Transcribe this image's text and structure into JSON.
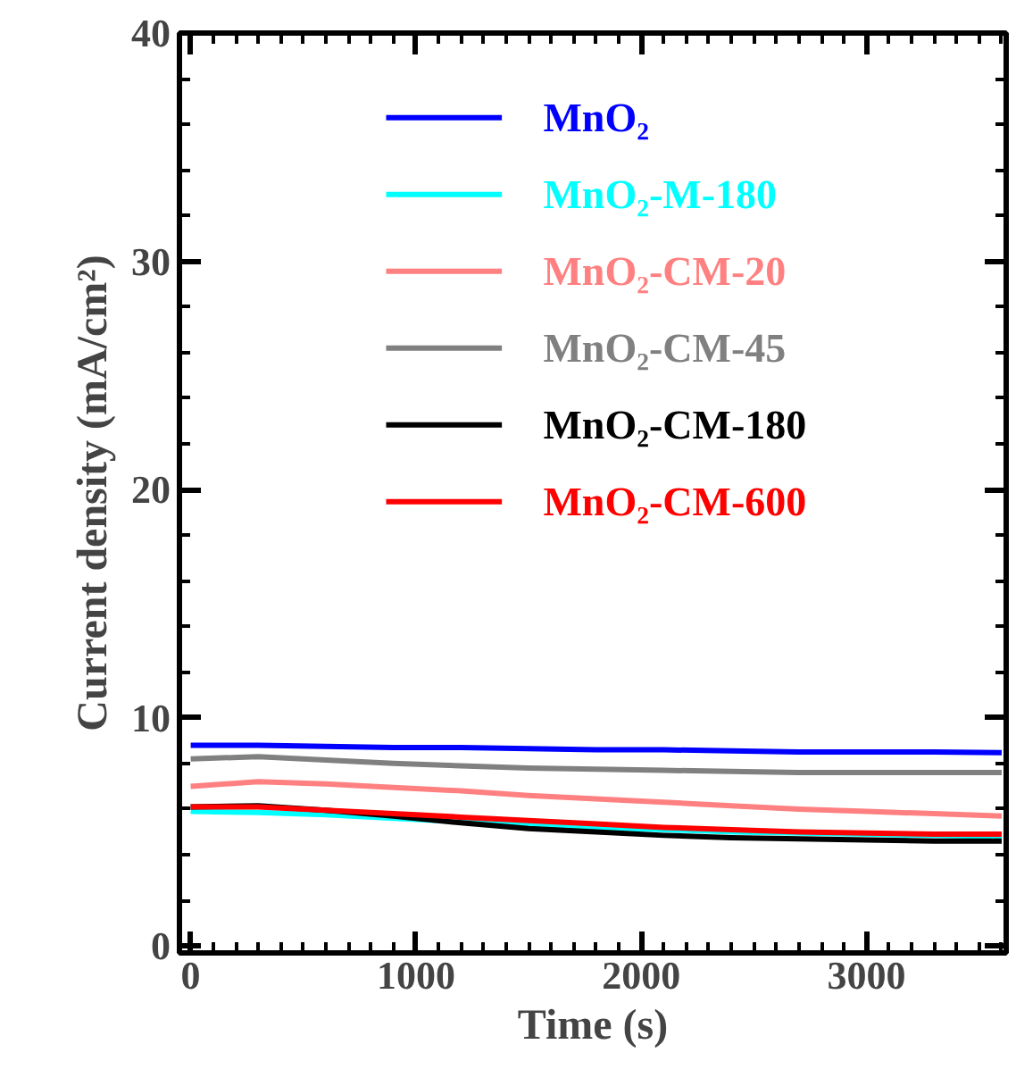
{
  "chart_data": {
    "type": "line",
    "xlabel": "Time (s)",
    "ylabel": "Current density (mA/cm²)",
    "x": [
      0,
      300,
      600,
      900,
      1200,
      1500,
      1800,
      2100,
      2400,
      2700,
      3000,
      3300,
      3600
    ],
    "series": [
      {
        "name": "MnO₂",
        "color": "#0000ff",
        "values": [
          8.8,
          8.8,
          8.75,
          8.7,
          8.7,
          8.65,
          8.6,
          8.6,
          8.55,
          8.5,
          8.5,
          8.5,
          8.47
        ]
      },
      {
        "name": "MnO₂-M-180",
        "color": "#00ffff",
        "values": [
          5.9,
          5.85,
          5.75,
          5.6,
          5.45,
          5.3,
          5.2,
          5.1,
          5.0,
          4.95,
          4.9,
          4.85,
          4.8
        ]
      },
      {
        "name": "MnO₂-CM-20",
        "color": "#ff8080",
        "values": [
          7.0,
          7.2,
          7.1,
          6.95,
          6.8,
          6.6,
          6.45,
          6.3,
          6.15,
          6.0,
          5.9,
          5.8,
          5.7
        ]
      },
      {
        "name": "MnO₂-CM-45",
        "color": "#808080",
        "values": [
          8.2,
          8.3,
          8.15,
          8.0,
          7.9,
          7.8,
          7.75,
          7.7,
          7.65,
          7.6,
          7.6,
          7.6,
          7.6
        ]
      },
      {
        "name": "MnO₂-CM-180",
        "color": "#000000",
        "values": [
          6.1,
          6.15,
          5.95,
          5.7,
          5.4,
          5.15,
          5.0,
          4.85,
          4.75,
          4.7,
          4.65,
          4.6,
          4.6
        ]
      },
      {
        "name": "MnO₂-CM-600",
        "color": "#ff0000",
        "values": [
          6.1,
          6.1,
          5.95,
          5.8,
          5.65,
          5.5,
          5.35,
          5.2,
          5.1,
          5.0,
          4.95,
          4.9,
          4.9
        ]
      }
    ],
    "xlim": [
      -50,
      3620
    ],
    "ylim": [
      -0.3,
      40
    ],
    "xticks": [
      0,
      1000,
      2000,
      3000
    ],
    "yticks": [
      0,
      10,
      20,
      30,
      40
    ],
    "grid": false,
    "legend": "top",
    "line_style": "solid",
    "marker": "none"
  }
}
